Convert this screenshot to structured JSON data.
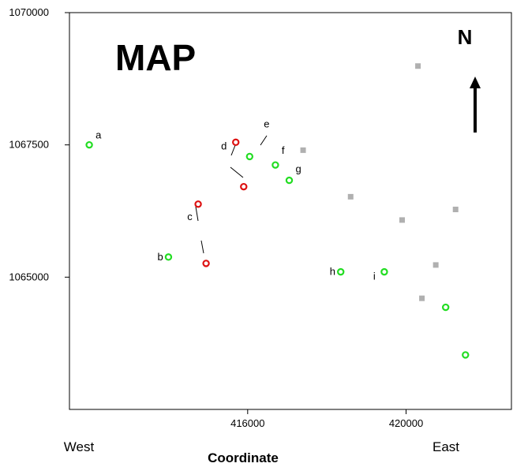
{
  "title": "MAP",
  "north_label": "N",
  "west_label": "West",
  "east_label": "East",
  "chart_data": {
    "type": "scatter",
    "xlabel": "Coordinate",
    "ylabel": "",
    "xlim": [
      411500,
      422700
    ],
    "ylim": [
      1062500,
      1070000
    ],
    "x_ticks": [
      416000,
      420000
    ],
    "y_ticks": [
      1065000,
      1067500,
      1070000
    ],
    "grid": false,
    "colors": {
      "green": "#22dd22",
      "red": "#dd1111",
      "gray": "#b0b0b0"
    },
    "series": [
      {
        "marker": "open-circle",
        "color": "#22dd22",
        "points": [
          {
            "label": "a",
            "x": 412000,
            "y": 1067500
          },
          {
            "label": "b",
            "x": 414000,
            "y": 1065380
          },
          {
            "label": "",
            "x": 416050,
            "y": 1067280
          },
          {
            "label": "f",
            "x": 416700,
            "y": 1067120
          },
          {
            "label": "g",
            "x": 417050,
            "y": 1066830
          },
          {
            "label": "h",
            "x": 418350,
            "y": 1065100
          },
          {
            "label": "i",
            "x": 419450,
            "y": 1065100
          },
          {
            "label": "",
            "x": 421000,
            "y": 1064430
          },
          {
            "label": "",
            "x": 421500,
            "y": 1063530
          }
        ]
      },
      {
        "marker": "open-circle",
        "color": "#dd1111",
        "points": [
          {
            "x": 415700,
            "y": 1067550
          },
          {
            "x": 415900,
            "y": 1066710
          },
          {
            "x": 414750,
            "y": 1066380
          },
          {
            "x": 414950,
            "y": 1065260
          }
        ]
      },
      {
        "marker": "square",
        "color": "#b0b0b0",
        "points": [
          {
            "x": 420300,
            "y": 1068990
          },
          {
            "x": 417400,
            "y": 1067400
          },
          {
            "x": 418600,
            "y": 1066520
          },
          {
            "x": 419900,
            "y": 1066080
          },
          {
            "x": 421250,
            "y": 1066280
          },
          {
            "x": 420750,
            "y": 1065230
          },
          {
            "x": 420400,
            "y": 1064600
          }
        ]
      }
    ],
    "annotations": [
      {
        "text": "d",
        "x": 415400,
        "y": 1067410
      },
      {
        "text": "e",
        "x": 416480,
        "y": 1067830
      },
      {
        "text": "c",
        "x": 414540,
        "y": 1066080
      }
    ]
  }
}
